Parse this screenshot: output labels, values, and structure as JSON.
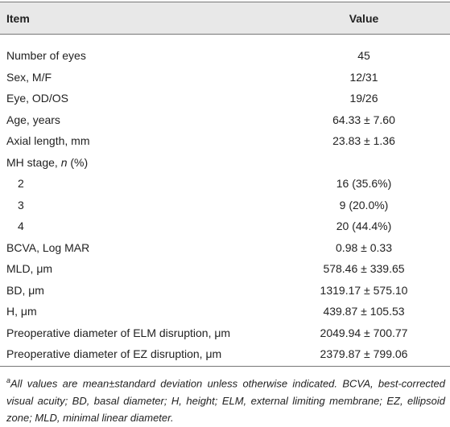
{
  "table": {
    "header": [
      "Item",
      "Value"
    ],
    "rows": [
      {
        "item": [
          "Number of eyes"
        ],
        "value": "45"
      },
      {
        "item": [
          "Sex, M/F"
        ],
        "value": "12/31"
      },
      {
        "item": [
          "Eye, OD/OS"
        ],
        "value": "19/26"
      },
      {
        "item": [
          "Age, years"
        ],
        "value": "64.33 ± 7.60"
      },
      {
        "item": [
          "Axial length, mm"
        ],
        "value": "23.83 ± 1.36"
      },
      {
        "item": [
          "MH stage, ",
          "n",
          " (%)"
        ],
        "value": ""
      },
      {
        "item": [
          "2"
        ],
        "value": "16 (35.6%)",
        "indent": true
      },
      {
        "item": [
          "3"
        ],
        "value": "9 (20.0%)",
        "indent": true
      },
      {
        "item": [
          "4"
        ],
        "value": "20 (44.4%)",
        "indent": true
      },
      {
        "item": [
          "BCVA, Log MAR"
        ],
        "value": "0.98 ± 0.33"
      },
      {
        "item": [
          "MLD, μm"
        ],
        "value": "578.46 ± 339.65"
      },
      {
        "item": [
          "BD, μm"
        ],
        "value": "1319.17 ± 575.10"
      },
      {
        "item": [
          "H, μm"
        ],
        "value": "439.87 ± 105.53"
      },
      {
        "item": [
          "Preoperative diameter of ELM disruption, μm"
        ],
        "value": "2049.94 ± 700.77"
      },
      {
        "item": [
          "Preoperative diameter of EZ disruption, μm"
        ],
        "value": "2379.87 ± 799.06"
      }
    ],
    "footnote_marker": "a",
    "footnote": "All values are mean±standard deviation unless otherwise indicated. BCVA, best-corrected visual acuity; BD, basal diameter; H, height; ELM, external limiting membrane; EZ, ellipsoid zone; MLD, minimal linear diameter."
  }
}
